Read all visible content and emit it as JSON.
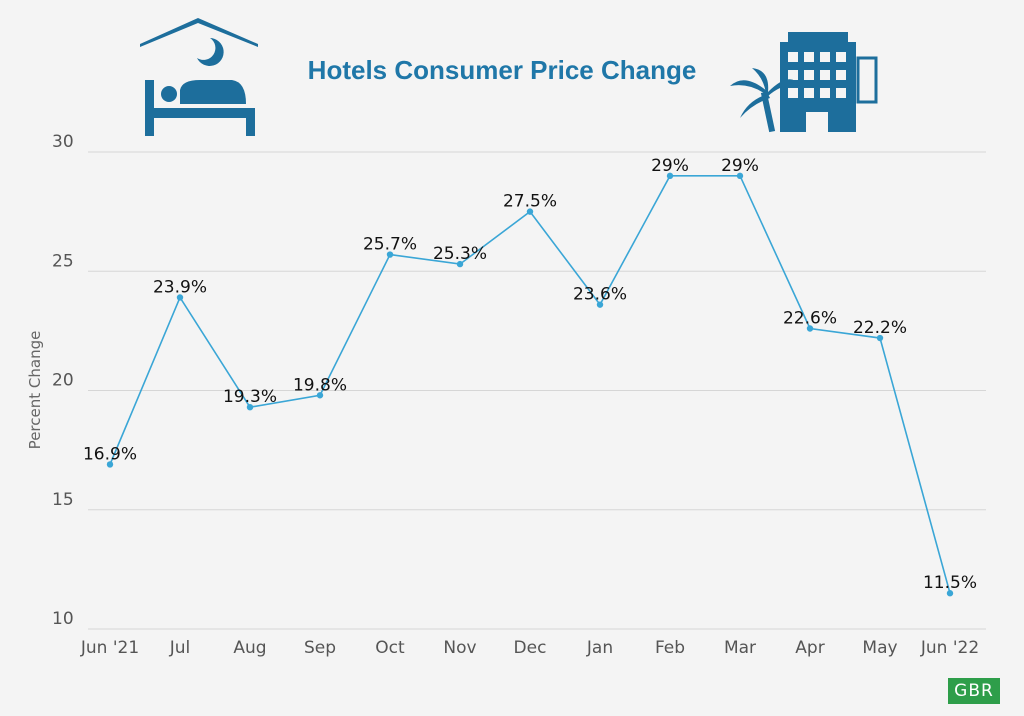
{
  "colors": {
    "background": "#f4f4f4",
    "title": "#1f77a8",
    "line": "#3aa6d6",
    "icon": "#1d6e9c",
    "badge": "#2e9e4a"
  },
  "icons": [
    "bed-icon",
    "hotel-building-icon"
  ],
  "badge": "GBR",
  "chart_data": {
    "type": "line",
    "title": "Hotels Consumer Price Change",
    "xlabel": "",
    "ylabel": "Percent Change",
    "ylim": [
      10,
      30
    ],
    "yticks": [
      10,
      15,
      20,
      25,
      30
    ],
    "grid": true,
    "categories": [
      "Jun '21",
      "Jul",
      "Aug",
      "Sep",
      "Oct",
      "Nov",
      "Dec",
      "Jan",
      "Feb",
      "Mar",
      "Apr",
      "May",
      "Jun '22"
    ],
    "series": [
      {
        "values": [
          16.9,
          23.9,
          19.3,
          19.8,
          25.7,
          25.3,
          27.5,
          23.6,
          29,
          29,
          22.6,
          22.2,
          11.5
        ],
        "labels": [
          "16.9%",
          "23.9%",
          "19.3%",
          "19.8%",
          "25.7%",
          "25.3%",
          "27.5%",
          "23.6%",
          "29%",
          "29%",
          "22.6%",
          "22.2%",
          "11.5%"
        ]
      }
    ]
  }
}
